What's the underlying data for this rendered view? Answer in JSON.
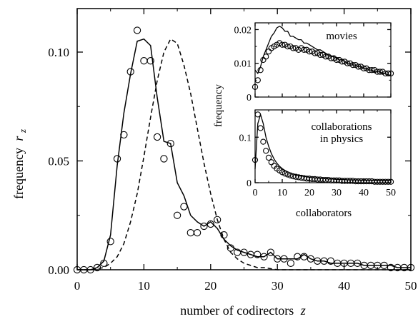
{
  "chart_data": [
    {
      "type": "line",
      "xlabel": "number of codirectors",
      "xlabel_symbol": "z",
      "ylabel": "frequency",
      "ylabel_symbol": "r",
      "ylabel_subscript": "z",
      "xlim": [
        0,
        50
      ],
      "ylim": [
        0,
        0.12
      ],
      "xticks": [
        0,
        10,
        20,
        30,
        40,
        50
      ],
      "xtick_labels": [
        "0",
        "10",
        "20",
        "30",
        "40",
        "50"
      ],
      "yticks": [
        0,
        0.05,
        0.1
      ],
      "ytick_labels": [
        "0.00",
        "0.05",
        "0.10"
      ],
      "series": [
        {
          "style": "circles",
          "x": [
            0,
            1,
            2,
            3,
            4,
            5,
            6,
            7,
            8,
            9,
            10,
            11,
            12,
            13,
            14,
            15,
            16,
            17,
            18,
            19,
            20,
            21,
            22,
            23,
            24,
            25,
            26,
            27,
            28,
            29,
            30,
            31,
            32,
            33,
            34,
            35,
            36,
            37,
            38,
            39,
            40,
            41,
            42,
            43,
            44,
            45,
            46,
            47,
            48,
            49,
            50
          ],
          "y": [
            0,
            0,
            0,
            0.001,
            0.003,
            0.013,
            0.051,
            0.062,
            0.091,
            0.11,
            0.096,
            0.096,
            0.061,
            0.051,
            0.058,
            0.025,
            0.029,
            0.017,
            0.017,
            0.02,
            0.021,
            0.023,
            0.016,
            0.01,
            0.008,
            0.008,
            0.007,
            0.007,
            0.006,
            0.008,
            0.005,
            0.005,
            0.003,
            0.006,
            0.006,
            0.005,
            0.004,
            0.004,
            0.004,
            0.003,
            0.003,
            0.003,
            0.003,
            0.002,
            0.002,
            0.002,
            0.002,
            0.001,
            0.001,
            0.001,
            0.001
          ]
        },
        {
          "style": "solid",
          "x": [
            0,
            1,
            2,
            3,
            4,
            5,
            6,
            7,
            8,
            9,
            10,
            11,
            12,
            13,
            14,
            15,
            16,
            17,
            18,
            19,
            20,
            21,
            22,
            23,
            24,
            25,
            26,
            27,
            28,
            29,
            30,
            31,
            32,
            33,
            34,
            35,
            36,
            37,
            38,
            39,
            40,
            41,
            42,
            43,
            44,
            45,
            46,
            47,
            48,
            49,
            50
          ],
          "y": [
            0,
            0,
            0,
            0.001,
            0.004,
            0.016,
            0.048,
            0.072,
            0.09,
            0.105,
            0.106,
            0.103,
            0.079,
            0.059,
            0.058,
            0.04,
            0.034,
            0.025,
            0.022,
            0.02,
            0.022,
            0.019,
            0.014,
            0.011,
            0.009,
            0.008,
            0.007,
            0.006,
            0.006,
            0.008,
            0.005,
            0.005,
            0.005,
            0.005,
            0.007,
            0.005,
            0.004,
            0.004,
            0.003,
            0.003,
            0.003,
            0.003,
            0.003,
            0.002,
            0.002,
            0.002,
            0.002,
            0.002,
            0.001,
            0.001,
            0.001
          ]
        },
        {
          "style": "dashed",
          "x": [
            0,
            1,
            2,
            3,
            4,
            5,
            6,
            7,
            8,
            9,
            10,
            11,
            12,
            13,
            14,
            15,
            16,
            17,
            18,
            19,
            20,
            21,
            22,
            23,
            24,
            25,
            26,
            27,
            28,
            29,
            30,
            31,
            32,
            33,
            34,
            35,
            36,
            37,
            38,
            39,
            40,
            41,
            42,
            43,
            44,
            45,
            46,
            47,
            48,
            49,
            50
          ],
          "y": [
            0,
            0,
            0,
            0.0005,
            0.001,
            0.003,
            0.006,
            0.012,
            0.022,
            0.035,
            0.052,
            0.07,
            0.087,
            0.1,
            0.106,
            0.104,
            0.094,
            0.081,
            0.065,
            0.049,
            0.035,
            0.023,
            0.014,
            0.008,
            0.005,
            0.003,
            0.002,
            0.001,
            0.001,
            0.0005,
            0,
            0,
            0,
            0,
            0,
            0,
            0,
            0,
            0,
            0,
            0,
            0,
            0,
            0,
            0,
            0,
            0,
            0,
            0,
            0,
            0
          ]
        }
      ]
    },
    {
      "type": "line",
      "title": "movies",
      "ylabel": "frequency",
      "xlim": [
        0,
        50
      ],
      "ylim": [
        0,
        0.022
      ],
      "xticks": [
        0,
        10,
        20,
        30,
        40,
        50
      ],
      "yticks": [
        0,
        0.01,
        0.02
      ],
      "ytick_labels": [
        "0",
        "0.01",
        "0.02"
      ],
      "series": [
        {
          "style": "circles",
          "x": [
            0,
            1,
            2,
            3,
            4,
            5,
            6,
            7,
            8,
            9,
            10,
            11,
            12,
            13,
            14,
            15,
            16,
            17,
            18,
            19,
            20,
            21,
            22,
            23,
            24,
            25,
            26,
            27,
            28,
            29,
            30,
            31,
            32,
            33,
            34,
            35,
            36,
            37,
            38,
            39,
            40,
            41,
            42,
            43,
            44,
            45,
            46,
            47,
            48,
            49,
            50
          ],
          "y": [
            0.003,
            0.005,
            0.008,
            0.011,
            0.012,
            0.0135,
            0.0145,
            0.015,
            0.0155,
            0.016,
            0.0155,
            0.0155,
            0.015,
            0.015,
            0.0145,
            0.0145,
            0.014,
            0.0145,
            0.014,
            0.014,
            0.0135,
            0.0135,
            0.013,
            0.013,
            0.0125,
            0.0125,
            0.012,
            0.012,
            0.0115,
            0.0115,
            0.011,
            0.011,
            0.0105,
            0.0105,
            0.01,
            0.01,
            0.0095,
            0.0095,
            0.009,
            0.009,
            0.0085,
            0.0085,
            0.008,
            0.008,
            0.008,
            0.0075,
            0.0075,
            0.0075,
            0.007,
            0.007,
            0.007
          ]
        },
        {
          "style": "solid",
          "x": [
            0,
            1,
            2,
            3,
            4,
            5,
            6,
            7,
            8,
            9,
            10,
            11,
            12,
            13,
            14,
            15,
            16,
            17,
            18,
            19,
            20,
            21,
            22,
            23,
            24,
            25,
            26,
            27,
            28,
            29,
            30,
            31,
            32,
            33,
            34,
            35,
            36,
            37,
            38,
            39,
            40,
            41,
            42,
            43,
            44,
            45,
            46,
            47,
            48,
            49,
            50
          ],
          "y": [
            0.008,
            0.007,
            0.009,
            0.012,
            0.014,
            0.016,
            0.018,
            0.019,
            0.0205,
            0.021,
            0.0205,
            0.0195,
            0.0195,
            0.018,
            0.018,
            0.0175,
            0.017,
            0.017,
            0.016,
            0.016,
            0.0155,
            0.015,
            0.0145,
            0.014,
            0.014,
            0.0135,
            0.013,
            0.0125,
            0.012,
            0.012,
            0.0115,
            0.011,
            0.011,
            0.0105,
            0.01,
            0.01,
            0.0095,
            0.0095,
            0.009,
            0.009,
            0.0085,
            0.0085,
            0.008,
            0.008,
            0.0075,
            0.0075,
            0.0075,
            0.007,
            0.007,
            0.0065,
            0.0065
          ]
        }
      ]
    },
    {
      "type": "line",
      "title": "collaborations in physics",
      "title_lines": [
        "collaborations",
        "in physics"
      ],
      "xlabel": "collaborators",
      "xlim": [
        0,
        50
      ],
      "ylim": [
        0,
        0.16
      ],
      "xticks": [
        0,
        10,
        20,
        30,
        40,
        50
      ],
      "xtick_labels": [
        "0",
        "10",
        "20",
        "30",
        "40",
        "50"
      ],
      "yticks": [
        0,
        0.1
      ],
      "ytick_labels": [
        "0",
        "0.1"
      ],
      "series": [
        {
          "style": "circles",
          "x": [
            0,
            1,
            2,
            3,
            4,
            5,
            6,
            7,
            8,
            9,
            10,
            11,
            12,
            13,
            14,
            15,
            16,
            17,
            18,
            19,
            20,
            21,
            22,
            23,
            24,
            25,
            26,
            27,
            28,
            29,
            30,
            31,
            32,
            33,
            34,
            35,
            36,
            37,
            38,
            39,
            40,
            41,
            42,
            43,
            44,
            45,
            46,
            47,
            48,
            49,
            50
          ],
          "y": [
            0.05,
            0.15,
            0.12,
            0.09,
            0.07,
            0.055,
            0.045,
            0.037,
            0.031,
            0.027,
            0.023,
            0.02,
            0.018,
            0.016,
            0.014,
            0.013,
            0.012,
            0.011,
            0.01,
            0.009,
            0.009,
            0.008,
            0.008,
            0.007,
            0.007,
            0.006,
            0.006,
            0.006,
            0.005,
            0.005,
            0.005,
            0.005,
            0.004,
            0.004,
            0.004,
            0.004,
            0.004,
            0.003,
            0.003,
            0.003,
            0.003,
            0.003,
            0.003,
            0.003,
            0.002,
            0.002,
            0.002,
            0.002,
            0.002,
            0.002,
            0.002
          ]
        },
        {
          "style": "solid",
          "x": [
            0,
            1,
            2,
            3,
            4,
            5,
            6,
            7,
            8,
            9,
            10,
            11,
            12,
            13,
            14,
            15,
            16,
            17,
            18,
            19,
            20,
            21,
            22,
            23,
            24,
            25,
            26,
            27,
            28,
            29,
            30,
            31,
            32,
            33,
            34,
            35,
            36,
            37,
            38,
            39,
            40,
            41,
            42,
            43,
            44,
            45,
            46,
            47,
            48,
            49,
            50
          ],
          "y": [
            0.03,
            0.13,
            0.15,
            0.13,
            0.1,
            0.08,
            0.064,
            0.052,
            0.043,
            0.036,
            0.031,
            0.027,
            0.024,
            0.021,
            0.019,
            0.017,
            0.016,
            0.015,
            0.014,
            0.013,
            0.012,
            0.011,
            0.011,
            0.01,
            0.01,
            0.009,
            0.009,
            0.008,
            0.008,
            0.008,
            0.007,
            0.007,
            0.007,
            0.007,
            0.006,
            0.006,
            0.006,
            0.006,
            0.006,
            0.005,
            0.005,
            0.005,
            0.005,
            0.005,
            0.005,
            0.005,
            0.005,
            0.005,
            0.005,
            0.005,
            0.005
          ]
        }
      ]
    }
  ]
}
